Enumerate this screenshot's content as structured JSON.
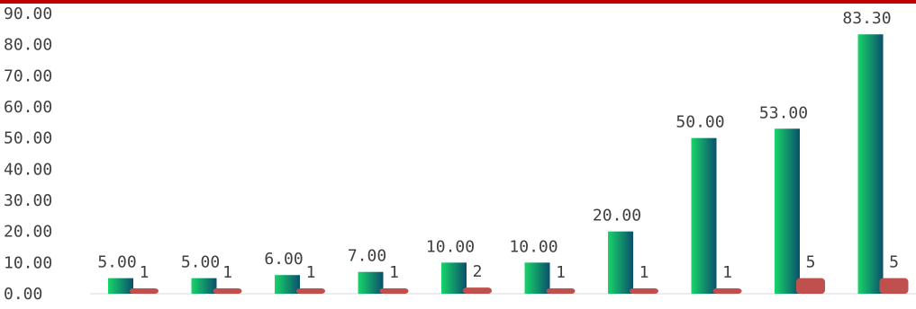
{
  "colors": {
    "top_border": "#c00000",
    "series1_gradient": [
      "#18d46a",
      "#0b4f6c"
    ],
    "series2": "#c0504d",
    "axis": "#d9d9d9",
    "text": "#404040"
  },
  "chart_data": {
    "type": "bar",
    "categories": [
      "",
      "",
      "",
      "",
      "",
      "",
      "",
      "",
      "",
      ""
    ],
    "series": [
      {
        "values": [
          5.0,
          5.0,
          6.0,
          7.0,
          10.0,
          10.0,
          20.0,
          50.0,
          53.0,
          83.3
        ],
        "labels": [
          "5.00",
          "5.00",
          "6.00",
          "7.00",
          "10.00",
          "10.00",
          "20.00",
          "50.00",
          "53.00",
          "83.30"
        ]
      },
      {
        "values": [
          1,
          1,
          1,
          1,
          2,
          1,
          1,
          1,
          5,
          5
        ],
        "labels": [
          "1",
          "1",
          "1",
          "1",
          "2",
          "1",
          "1",
          "1",
          "5",
          "5"
        ]
      }
    ],
    "ylim": [
      0,
      90
    ],
    "yticks": [
      "0.00",
      "10.00",
      "20.00",
      "30.00",
      "40.00",
      "50.00",
      "60.00",
      "70.00",
      "80.00",
      "90.00"
    ],
    "grid": false,
    "legend": "none"
  }
}
